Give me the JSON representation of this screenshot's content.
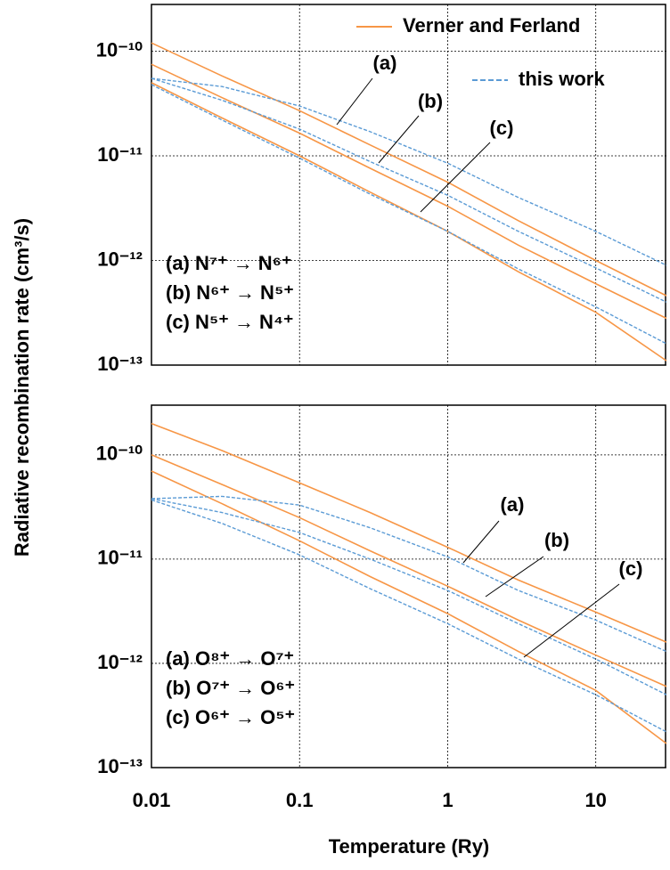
{
  "chart_data": [
    {
      "type": "line",
      "xscale": "log",
      "yscale": "log",
      "grid": true,
      "legend": "upper right",
      "ylabel": "Radiative recombination rate (cm³/s)",
      "xlim": [
        0.01,
        30
      ],
      "xticks": [
        0.01,
        0.1,
        1,
        10
      ],
      "ylim": [
        1e-13,
        2.8e-10
      ],
      "yticks": [
        {
          "value": 1e-13,
          "label": "10⁻¹³"
        },
        {
          "value": 1e-12,
          "label": "10⁻¹²"
        },
        {
          "value": 1e-11,
          "label": "10⁻¹¹"
        },
        {
          "value": 1e-10,
          "label": "10⁻¹⁰"
        }
      ],
      "x": [
        0.01,
        0.03,
        0.1,
        0.3,
        1,
        3,
        10,
        30
      ],
      "series": [
        {
          "name": "Verner and Ferland",
          "color": "#f79646",
          "dashed": false,
          "values": [
            1.2e-10,
            5.8e-11,
            2.7e-11,
            1.27e-11,
            5.6e-12,
            2.4e-12,
            1e-12,
            4.6e-13
          ]
        },
        {
          "name": "Verner and Ferland",
          "color": "#f79646",
          "dashed": false,
          "values": [
            7.5e-11,
            3.6e-11,
            1.65e-11,
            7.6e-12,
            3.3e-12,
            1.4e-12,
            6e-13,
            2.8e-13
          ]
        },
        {
          "name": "Verner and Ferland",
          "color": "#f79646",
          "dashed": false,
          "values": [
            5e-11,
            2.3e-11,
            1e-11,
            4.5e-12,
            1.9e-12,
            7.8e-13,
            3.2e-13,
            1.1e-13
          ]
        },
        {
          "name": "this work",
          "color": "#5b9bd5",
          "dashed": true,
          "values": [
            5.5e-11,
            4.6e-11,
            3e-11,
            1.7e-11,
            8.5e-12,
            4e-12,
            1.9e-12,
            9e-13
          ]
        },
        {
          "name": "this work",
          "color": "#5b9bd5",
          "dashed": true,
          "values": [
            5.5e-11,
            3.4e-11,
            1.8e-11,
            8.8e-12,
            4.2e-12,
            1.9e-12,
            8.5e-13,
            4e-13
          ]
        },
        {
          "name": "this work",
          "color": "#5b9bd5",
          "dashed": true,
          "values": [
            4.8e-11,
            2.2e-11,
            9.5e-12,
            4.3e-12,
            1.9e-12,
            8.3e-13,
            3.6e-13,
            1.6e-13
          ]
        }
      ],
      "annotations": [
        "(a)",
        "(b)",
        "(c)"
      ],
      "reactions": [
        "(a) N⁷⁺ → N⁶⁺",
        "(b) N⁶⁺ → N⁵⁺",
        "(c) N⁵⁺ → N⁴⁺"
      ]
    },
    {
      "type": "line",
      "xscale": "log",
      "yscale": "log",
      "grid": true,
      "xlabel": "Temperature (Ry)",
      "xlim": [
        0.01,
        30
      ],
      "xticks": [
        0.01,
        0.1,
        1,
        10
      ],
      "ylim": [
        1e-13,
        3e-10
      ],
      "yticks": [
        {
          "value": 1e-13,
          "label": "10⁻¹³"
        },
        {
          "value": 1e-12,
          "label": "10⁻¹²"
        },
        {
          "value": 1e-11,
          "label": "10⁻¹¹"
        },
        {
          "value": 1e-10,
          "label": "10⁻¹⁰"
        }
      ],
      "x": [
        0.01,
        0.03,
        0.1,
        0.3,
        1,
        3,
        10,
        30
      ],
      "series": [
        {
          "name": "Verner and Ferland",
          "color": "#f79646",
          "dashed": false,
          "values": [
            2e-10,
            1.1e-10,
            5.4e-11,
            2.8e-11,
            1.3e-11,
            6.3e-12,
            3.1e-12,
            1.6e-12
          ]
        },
        {
          "name": "Verner and Ferland",
          "color": "#f79646",
          "dashed": false,
          "values": [
            1e-10,
            5.2e-11,
            2.5e-11,
            1.2e-11,
            5.5e-12,
            2.6e-12,
            1.2e-12,
            6e-13
          ]
        },
        {
          "name": "Verner and Ferland",
          "color": "#f79646",
          "dashed": false,
          "values": [
            7e-11,
            3.4e-11,
            1.5e-11,
            6.8e-12,
            3e-12,
            1.3e-12,
            5.5e-13,
            1.7e-13
          ]
        },
        {
          "name": "this work",
          "color": "#5b9bd5",
          "dashed": true,
          "values": [
            3.8e-11,
            4e-11,
            3.3e-11,
            2e-11,
            1.05e-11,
            5e-12,
            2.6e-12,
            1.3e-12
          ]
        },
        {
          "name": "this work",
          "color": "#5b9bd5",
          "dashed": true,
          "values": [
            3.8e-11,
            2.8e-11,
            1.8e-11,
            1e-11,
            5e-12,
            2.4e-12,
            1.1e-12,
            5e-13
          ]
        },
        {
          "name": "this work",
          "color": "#5b9bd5",
          "dashed": true,
          "values": [
            3.7e-11,
            2.2e-11,
            1.1e-11,
            5.2e-12,
            2.4e-12,
            1.1e-12,
            5e-13,
            2.2e-13
          ]
        }
      ],
      "annotations": [
        "(a)",
        "(b)",
        "(c)"
      ],
      "reactions": [
        "(a) O⁸⁺ → O⁷⁺",
        "(b) O⁷⁺ → O⁶⁺",
        "(c) O⁶⁺ → O⁵⁺"
      ]
    }
  ]
}
